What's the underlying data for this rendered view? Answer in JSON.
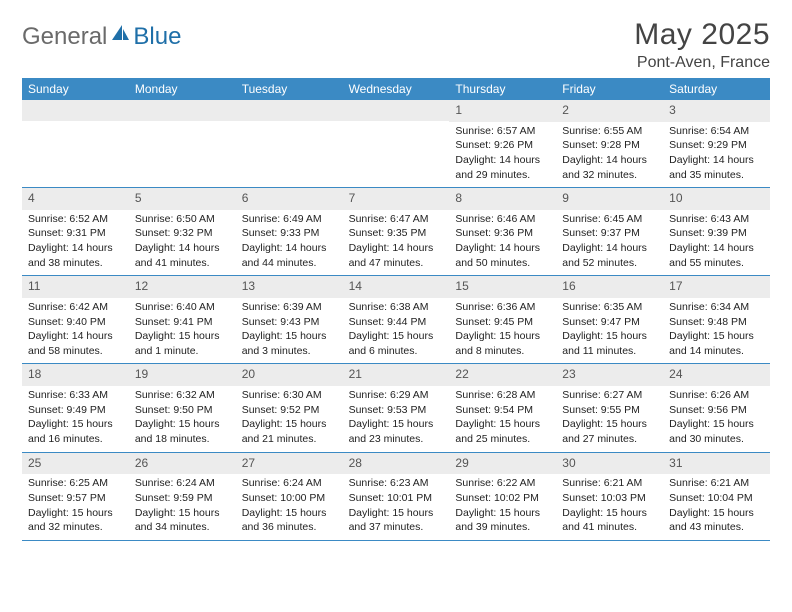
{
  "logo": {
    "text_general": "General",
    "text_blue": "Blue",
    "icon_color": "#1f6fa8",
    "text_gray": "#6a6a6a"
  },
  "header": {
    "month_title": "May 2025",
    "location": "Pont-Aven, France"
  },
  "colors": {
    "header_bar": "#3b8ac4",
    "daynum_bg": "#ececec",
    "border": "#3b8ac4",
    "title_color": "#444444",
    "body_text": "#222222"
  },
  "fonts": {
    "title_size": 30,
    "location_size": 16,
    "weekday_size": 12,
    "daynum_size": 12,
    "body_size": 10.5
  },
  "weekdays": [
    "Sunday",
    "Monday",
    "Tuesday",
    "Wednesday",
    "Thursday",
    "Friday",
    "Saturday"
  ],
  "blank_cells_before": 4,
  "days": [
    {
      "num": "1",
      "sunrise": "Sunrise: 6:57 AM",
      "sunset": "Sunset: 9:26 PM",
      "daylight1": "Daylight: 14 hours",
      "daylight2": "and 29 minutes."
    },
    {
      "num": "2",
      "sunrise": "Sunrise: 6:55 AM",
      "sunset": "Sunset: 9:28 PM",
      "daylight1": "Daylight: 14 hours",
      "daylight2": "and 32 minutes."
    },
    {
      "num": "3",
      "sunrise": "Sunrise: 6:54 AM",
      "sunset": "Sunset: 9:29 PM",
      "daylight1": "Daylight: 14 hours",
      "daylight2": "and 35 minutes."
    },
    {
      "num": "4",
      "sunrise": "Sunrise: 6:52 AM",
      "sunset": "Sunset: 9:31 PM",
      "daylight1": "Daylight: 14 hours",
      "daylight2": "and 38 minutes."
    },
    {
      "num": "5",
      "sunrise": "Sunrise: 6:50 AM",
      "sunset": "Sunset: 9:32 PM",
      "daylight1": "Daylight: 14 hours",
      "daylight2": "and 41 minutes."
    },
    {
      "num": "6",
      "sunrise": "Sunrise: 6:49 AM",
      "sunset": "Sunset: 9:33 PM",
      "daylight1": "Daylight: 14 hours",
      "daylight2": "and 44 minutes."
    },
    {
      "num": "7",
      "sunrise": "Sunrise: 6:47 AM",
      "sunset": "Sunset: 9:35 PM",
      "daylight1": "Daylight: 14 hours",
      "daylight2": "and 47 minutes."
    },
    {
      "num": "8",
      "sunrise": "Sunrise: 6:46 AM",
      "sunset": "Sunset: 9:36 PM",
      "daylight1": "Daylight: 14 hours",
      "daylight2": "and 50 minutes."
    },
    {
      "num": "9",
      "sunrise": "Sunrise: 6:45 AM",
      "sunset": "Sunset: 9:37 PM",
      "daylight1": "Daylight: 14 hours",
      "daylight2": "and 52 minutes."
    },
    {
      "num": "10",
      "sunrise": "Sunrise: 6:43 AM",
      "sunset": "Sunset: 9:39 PM",
      "daylight1": "Daylight: 14 hours",
      "daylight2": "and 55 minutes."
    },
    {
      "num": "11",
      "sunrise": "Sunrise: 6:42 AM",
      "sunset": "Sunset: 9:40 PM",
      "daylight1": "Daylight: 14 hours",
      "daylight2": "and 58 minutes."
    },
    {
      "num": "12",
      "sunrise": "Sunrise: 6:40 AM",
      "sunset": "Sunset: 9:41 PM",
      "daylight1": "Daylight: 15 hours",
      "daylight2": "and 1 minute."
    },
    {
      "num": "13",
      "sunrise": "Sunrise: 6:39 AM",
      "sunset": "Sunset: 9:43 PM",
      "daylight1": "Daylight: 15 hours",
      "daylight2": "and 3 minutes."
    },
    {
      "num": "14",
      "sunrise": "Sunrise: 6:38 AM",
      "sunset": "Sunset: 9:44 PM",
      "daylight1": "Daylight: 15 hours",
      "daylight2": "and 6 minutes."
    },
    {
      "num": "15",
      "sunrise": "Sunrise: 6:36 AM",
      "sunset": "Sunset: 9:45 PM",
      "daylight1": "Daylight: 15 hours",
      "daylight2": "and 8 minutes."
    },
    {
      "num": "16",
      "sunrise": "Sunrise: 6:35 AM",
      "sunset": "Sunset: 9:47 PM",
      "daylight1": "Daylight: 15 hours",
      "daylight2": "and 11 minutes."
    },
    {
      "num": "17",
      "sunrise": "Sunrise: 6:34 AM",
      "sunset": "Sunset: 9:48 PM",
      "daylight1": "Daylight: 15 hours",
      "daylight2": "and 14 minutes."
    },
    {
      "num": "18",
      "sunrise": "Sunrise: 6:33 AM",
      "sunset": "Sunset: 9:49 PM",
      "daylight1": "Daylight: 15 hours",
      "daylight2": "and 16 minutes."
    },
    {
      "num": "19",
      "sunrise": "Sunrise: 6:32 AM",
      "sunset": "Sunset: 9:50 PM",
      "daylight1": "Daylight: 15 hours",
      "daylight2": "and 18 minutes."
    },
    {
      "num": "20",
      "sunrise": "Sunrise: 6:30 AM",
      "sunset": "Sunset: 9:52 PM",
      "daylight1": "Daylight: 15 hours",
      "daylight2": "and 21 minutes."
    },
    {
      "num": "21",
      "sunrise": "Sunrise: 6:29 AM",
      "sunset": "Sunset: 9:53 PM",
      "daylight1": "Daylight: 15 hours",
      "daylight2": "and 23 minutes."
    },
    {
      "num": "22",
      "sunrise": "Sunrise: 6:28 AM",
      "sunset": "Sunset: 9:54 PM",
      "daylight1": "Daylight: 15 hours",
      "daylight2": "and 25 minutes."
    },
    {
      "num": "23",
      "sunrise": "Sunrise: 6:27 AM",
      "sunset": "Sunset: 9:55 PM",
      "daylight1": "Daylight: 15 hours",
      "daylight2": "and 27 minutes."
    },
    {
      "num": "24",
      "sunrise": "Sunrise: 6:26 AM",
      "sunset": "Sunset: 9:56 PM",
      "daylight1": "Daylight: 15 hours",
      "daylight2": "and 30 minutes."
    },
    {
      "num": "25",
      "sunrise": "Sunrise: 6:25 AM",
      "sunset": "Sunset: 9:57 PM",
      "daylight1": "Daylight: 15 hours",
      "daylight2": "and 32 minutes."
    },
    {
      "num": "26",
      "sunrise": "Sunrise: 6:24 AM",
      "sunset": "Sunset: 9:59 PM",
      "daylight1": "Daylight: 15 hours",
      "daylight2": "and 34 minutes."
    },
    {
      "num": "27",
      "sunrise": "Sunrise: 6:24 AM",
      "sunset": "Sunset: 10:00 PM",
      "daylight1": "Daylight: 15 hours",
      "daylight2": "and 36 minutes."
    },
    {
      "num": "28",
      "sunrise": "Sunrise: 6:23 AM",
      "sunset": "Sunset: 10:01 PM",
      "daylight1": "Daylight: 15 hours",
      "daylight2": "and 37 minutes."
    },
    {
      "num": "29",
      "sunrise": "Sunrise: 6:22 AM",
      "sunset": "Sunset: 10:02 PM",
      "daylight1": "Daylight: 15 hours",
      "daylight2": "and 39 minutes."
    },
    {
      "num": "30",
      "sunrise": "Sunrise: 6:21 AM",
      "sunset": "Sunset: 10:03 PM",
      "daylight1": "Daylight: 15 hours",
      "daylight2": "and 41 minutes."
    },
    {
      "num": "31",
      "sunrise": "Sunrise: 6:21 AM",
      "sunset": "Sunset: 10:04 PM",
      "daylight1": "Daylight: 15 hours",
      "daylight2": "and 43 minutes."
    }
  ]
}
